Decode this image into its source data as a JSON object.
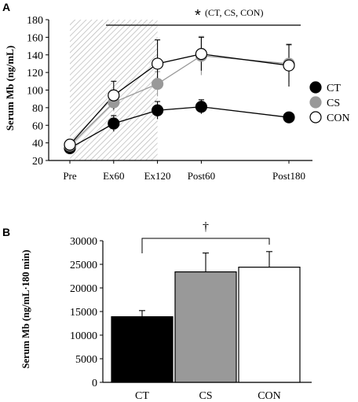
{
  "chart_data": [
    {
      "panel_label": "A",
      "type": "line",
      "ylabel": "Serum Mb (ng/mL)",
      "ylim": [
        20,
        180
      ],
      "yticks": [
        20,
        40,
        60,
        80,
        100,
        120,
        140,
        160,
        180
      ],
      "categories": [
        "Pre",
        "Ex60",
        "Ex120",
        "Post60",
        "Post180"
      ],
      "x": [
        0,
        60,
        120,
        180,
        300
      ],
      "shaded_region": [
        0,
        120
      ],
      "significance_text": "(CT, CS, CON)",
      "significance_symbol": "*",
      "legend_position": "right",
      "series": [
        {
          "name": "CT",
          "color": "#000000",
          "values": [
            34,
            62,
            77,
            81,
            69
          ],
          "errors": [
            3,
            9,
            10,
            8,
            4
          ]
        },
        {
          "name": "CS",
          "color": "#999999",
          "values": [
            37,
            86,
            107,
            139,
            130
          ],
          "errors": [
            3,
            10,
            14,
            22,
            21
          ]
        },
        {
          "name": "CON",
          "color": "#ffffff",
          "values": [
            38,
            94,
            130,
            141,
            128
          ],
          "errors": [
            3,
            16,
            27,
            19,
            24
          ]
        }
      ]
    },
    {
      "panel_label": "B",
      "type": "bar",
      "ylabel": "Serum Mb (ng/mL·180 min)",
      "ylim": [
        0,
        30000
      ],
      "yticks": [
        0,
        5000,
        10000,
        15000,
        20000,
        25000,
        30000
      ],
      "categories": [
        "CT",
        "CS",
        "CON"
      ],
      "values": [
        13900,
        23400,
        24400
      ],
      "errors": [
        1300,
        4000,
        3300
      ],
      "colors": [
        "#000000",
        "#999999",
        "#ffffff"
      ],
      "significance_symbol": "†"
    }
  ]
}
